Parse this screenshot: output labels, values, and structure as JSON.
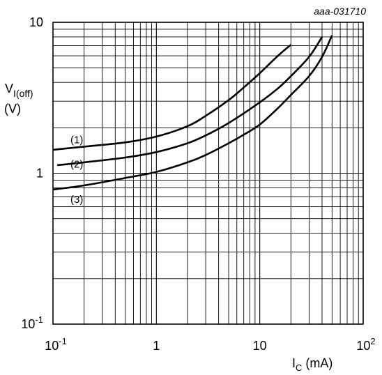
{
  "chart_data": {
    "type": "line",
    "title": "",
    "figure_code": "aaa-031710",
    "x_scale": "log",
    "y_scale": "log",
    "xlim": [
      0.1,
      100
    ],
    "ylim": [
      0.1,
      10
    ],
    "grid": true,
    "xlabel": {
      "main": "I",
      "sub": "C",
      "unit": " (mA)"
    },
    "ylabel": {
      "main": "V",
      "sub": "I(off)",
      "unit": "(V)"
    },
    "x_ticks": [
      {
        "value": 0.1,
        "base": "10",
        "exp": "-1"
      },
      {
        "value": 1,
        "base": "1",
        "exp": ""
      },
      {
        "value": 10,
        "base": "10",
        "exp": ""
      },
      {
        "value": 100,
        "base": "10",
        "exp": "2"
      }
    ],
    "y_ticks": [
      {
        "value": 10,
        "base": "10",
        "exp": ""
      },
      {
        "value": 1,
        "base": "1",
        "exp": ""
      },
      {
        "value": 0.1,
        "base": "10",
        "exp": "-1"
      }
    ],
    "series": [
      {
        "label": "(1)",
        "label_pos": [
          0.17,
          1.68
        ],
        "x": [
          0.1,
          0.2,
          0.5,
          1,
          2,
          3,
          5,
          7,
          10,
          15,
          20
        ],
        "y": [
          1.43,
          1.5,
          1.6,
          1.75,
          2.05,
          2.4,
          3.05,
          3.7,
          4.6,
          6.0,
          7.1
        ]
      },
      {
        "label": "(2)",
        "label_pos": [
          0.17,
          1.16
        ],
        "x": [
          0.11,
          0.2,
          0.5,
          1,
          2,
          3,
          5,
          10,
          15,
          20,
          30,
          40
        ],
        "y": [
          1.13,
          1.18,
          1.27,
          1.38,
          1.58,
          1.78,
          2.15,
          2.95,
          3.65,
          4.4,
          5.9,
          8.0
        ]
      },
      {
        "label": "(3)",
        "label_pos": [
          0.17,
          0.68
        ],
        "x": [
          0.1,
          0.2,
          0.5,
          1,
          2,
          3,
          5,
          7,
          10,
          15,
          20,
          30,
          40,
          50
        ],
        "y": [
          0.78,
          0.83,
          0.93,
          1.02,
          1.18,
          1.32,
          1.58,
          1.8,
          2.1,
          2.7,
          3.3,
          4.4,
          5.9,
          8.2
        ]
      }
    ]
  }
}
